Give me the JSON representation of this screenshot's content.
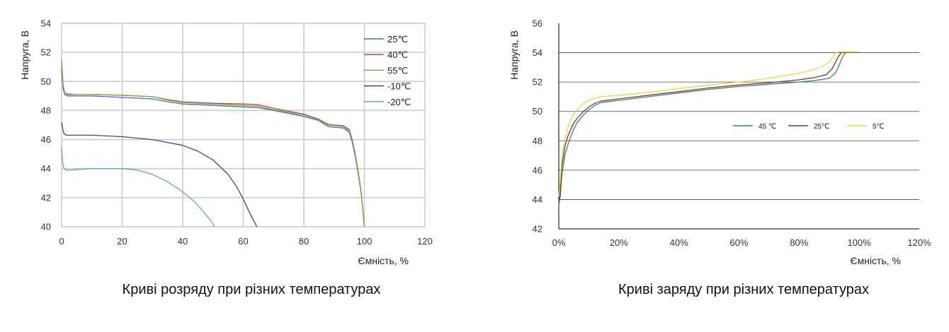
{
  "chart_data": [
    {
      "type": "line",
      "caption": "Криві розряду при різних температурах",
      "xlabel": "Ємність, %",
      "ylabel": "Напруга, В",
      "xlim": [
        0,
        120
      ],
      "ylim": [
        40,
        54
      ],
      "xticks": [
        "0",
        "20",
        "40",
        "60",
        "80",
        "100",
        "120"
      ],
      "yticks": [
        "40",
        "42",
        "44",
        "46",
        "48",
        "50",
        "52",
        "54"
      ],
      "grid": "both",
      "legend_position": "right",
      "series": [
        {
          "name": "25℃",
          "color": "#3f6fb0",
          "x": [
            0,
            0.5,
            1,
            2,
            5,
            10,
            20,
            30,
            35,
            40,
            50,
            60,
            65,
            70,
            80,
            85,
            88,
            90,
            93,
            95,
            96,
            97,
            98,
            99,
            100
          ],
          "y": [
            50.8,
            49.5,
            49.1,
            49.0,
            49.0,
            49.0,
            48.9,
            48.8,
            48.6,
            48.45,
            48.35,
            48.25,
            48.2,
            48.0,
            47.6,
            47.3,
            46.9,
            46.85,
            46.8,
            46.5,
            45.8,
            44.8,
            43.6,
            42.2,
            40.0
          ]
        },
        {
          "name": "40℃",
          "color": "#b54a4a",
          "x": [
            0,
            0.5,
            1,
            2,
            5,
            10,
            20,
            30,
            35,
            40,
            50,
            60,
            65,
            70,
            80,
            85,
            88,
            90,
            93,
            95,
            96,
            97,
            98,
            99,
            100
          ],
          "y": [
            51.2,
            49.7,
            49.2,
            49.1,
            49.1,
            49.1,
            49.05,
            48.95,
            48.75,
            48.6,
            48.5,
            48.45,
            48.4,
            48.15,
            47.75,
            47.4,
            47.05,
            47.0,
            46.95,
            46.7,
            46.0,
            45.0,
            43.8,
            42.3,
            40.0
          ]
        },
        {
          "name": "55℃",
          "color": "#8aa64c",
          "x": [
            0,
            0.5,
            1,
            2,
            5,
            10,
            20,
            30,
            35,
            40,
            50,
            60,
            65,
            70,
            80,
            85,
            88,
            90,
            93,
            95,
            96,
            97,
            98,
            99,
            100
          ],
          "y": [
            51.5,
            49.8,
            49.2,
            49.15,
            49.1,
            49.1,
            49.05,
            48.95,
            48.7,
            48.55,
            48.45,
            48.35,
            48.3,
            48.05,
            47.7,
            47.35,
            47.0,
            46.95,
            46.9,
            46.6,
            45.9,
            44.9,
            43.7,
            42.2,
            40.0
          ]
        },
        {
          "name": "-10℃",
          "color": "#4a3f82",
          "x": [
            0,
            0.3,
            0.8,
            1.5,
            3,
            10,
            20,
            30,
            40,
            45,
            50,
            55,
            58,
            60,
            62,
            63.5,
            64.5
          ],
          "y": [
            47.2,
            46.8,
            46.4,
            46.3,
            46.3,
            46.3,
            46.2,
            46.0,
            45.6,
            45.2,
            44.6,
            43.6,
            42.7,
            41.9,
            41.0,
            40.4,
            40.0
          ]
        },
        {
          "name": "-20℃",
          "color": "#5fa8c8",
          "x": [
            0,
            0.3,
            0.8,
            1.5,
            3,
            10,
            20,
            25,
            30,
            35,
            40,
            44,
            47,
            49,
            50.5
          ],
          "y": [
            45.5,
            44.5,
            44.0,
            43.9,
            43.9,
            44.0,
            44.0,
            43.9,
            43.6,
            43.1,
            42.4,
            41.7,
            41.0,
            40.5,
            40.0
          ]
        }
      ]
    },
    {
      "type": "line",
      "caption": "Криві заряду при різних температурах",
      "xlabel": "Ємність, %",
      "ylabel": "Напруга, В",
      "xlim": [
        0,
        120
      ],
      "ylim": [
        42,
        56
      ],
      "xticks": [
        "0%",
        "20%",
        "40%",
        "60%",
        "80%",
        "100%",
        "120%"
      ],
      "yticks": [
        "42",
        "44",
        "46",
        "48",
        "50",
        "52",
        "54",
        "56"
      ],
      "grid": "horizontal",
      "legend_position": "center-right",
      "series": [
        {
          "name": "45 ℃",
          "color": "#3d8a45",
          "x": [
            0,
            0.5,
            1,
            2,
            3,
            4,
            5,
            6,
            8,
            10,
            12,
            14,
            20,
            30,
            40,
            50,
            60,
            70,
            80,
            85,
            90,
            92,
            93,
            94,
            95,
            96,
            96.5,
            97,
            98
          ],
          "y": [
            43.6,
            44.2,
            45.6,
            47.0,
            47.7,
            48.3,
            48.8,
            49.2,
            49.7,
            50.1,
            50.4,
            50.6,
            50.75,
            51.0,
            51.25,
            51.5,
            51.7,
            51.85,
            52.0,
            52.1,
            52.25,
            52.6,
            53.0,
            53.5,
            53.9,
            54.05,
            54.05,
            54.05,
            54.05
          ]
        },
        {
          "name": "25℃",
          "color": "#7a2a6a",
          "x": [
            0,
            0.5,
            1,
            2,
            3,
            4,
            5,
            6,
            8,
            10,
            12,
            14,
            20,
            30,
            40,
            50,
            60,
            70,
            80,
            85,
            89,
            91,
            92,
            93,
            94,
            95,
            96
          ],
          "y": [
            43.8,
            44.6,
            46.2,
            47.6,
            48.3,
            48.8,
            49.2,
            49.5,
            49.95,
            50.3,
            50.55,
            50.7,
            50.85,
            51.1,
            51.35,
            51.6,
            51.8,
            51.95,
            52.15,
            52.3,
            52.5,
            52.9,
            53.3,
            53.7,
            54.0,
            54.05,
            54.05
          ]
        },
        {
          "name": "5℃",
          "color": "#e6dc3a",
          "x": [
            0,
            0.5,
            1,
            2,
            3,
            4,
            5,
            6,
            8,
            10,
            12,
            14,
            20,
            30,
            40,
            50,
            60,
            70,
            80,
            85,
            88,
            90,
            91,
            92,
            93,
            94,
            96,
            98,
            100
          ],
          "y": [
            44.2,
            45.3,
            46.8,
            48.1,
            48.9,
            49.4,
            49.8,
            50.1,
            50.5,
            50.75,
            50.9,
            51.0,
            51.1,
            51.3,
            51.55,
            51.8,
            52.0,
            52.25,
            52.6,
            52.85,
            53.1,
            53.35,
            53.65,
            53.95,
            54.05,
            54.05,
            54.05,
            54.05,
            54.05
          ]
        }
      ]
    }
  ]
}
